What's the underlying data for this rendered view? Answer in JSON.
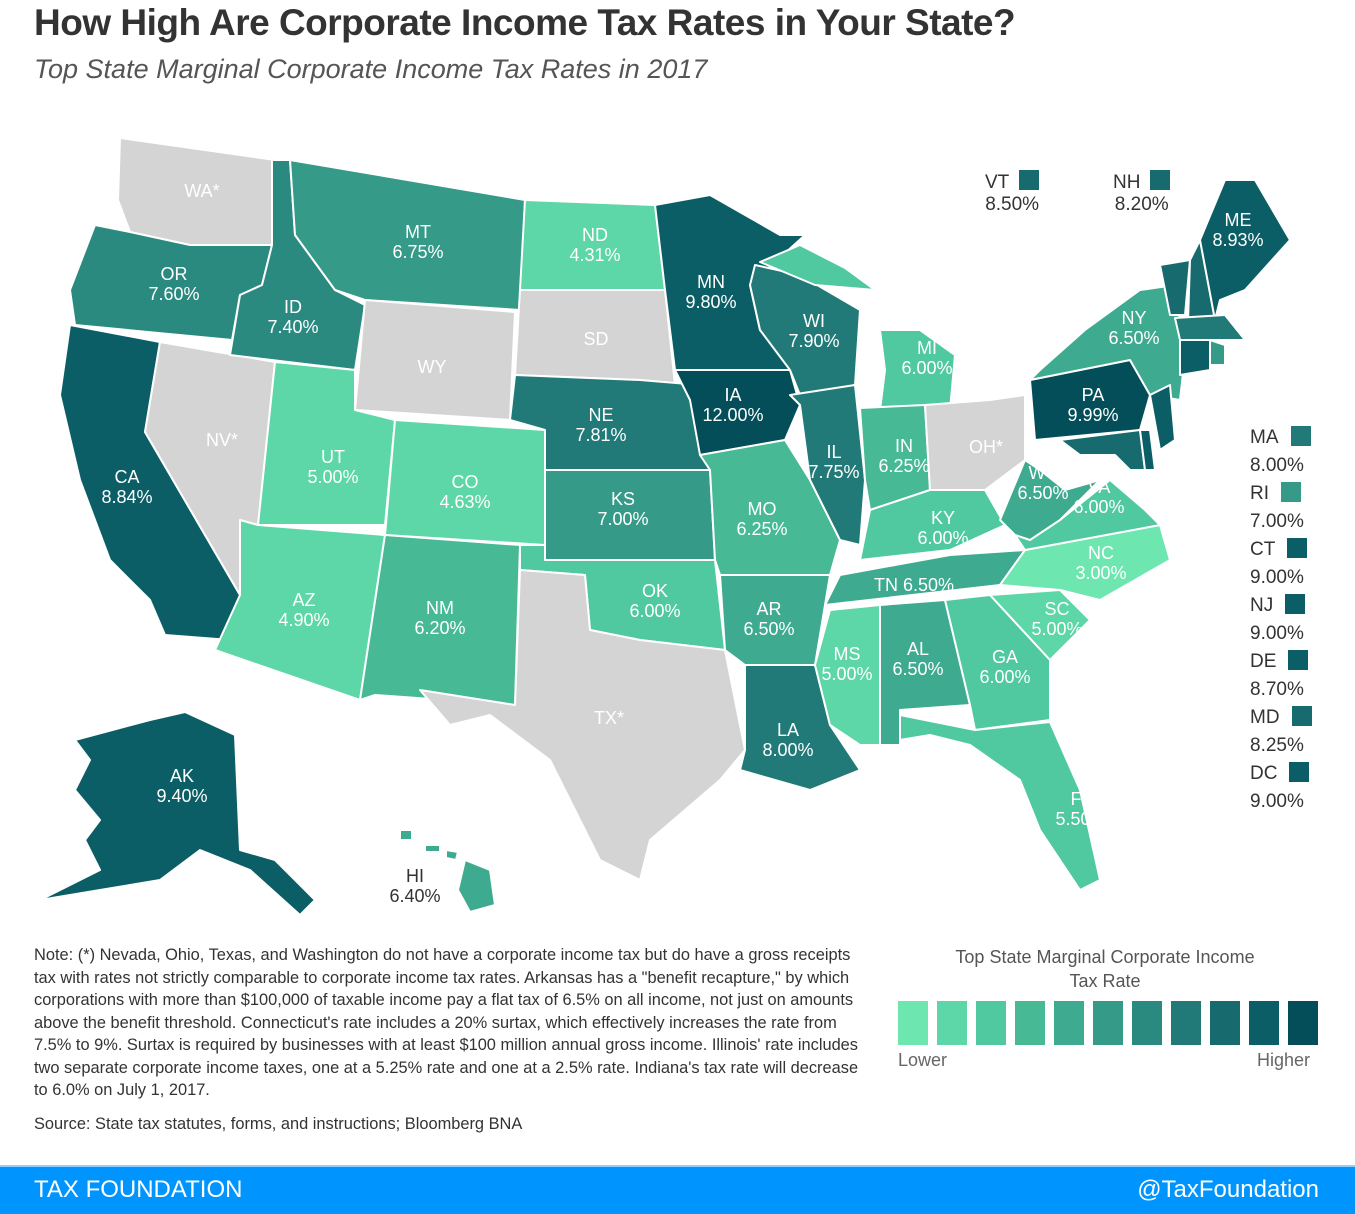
{
  "title": "How High Are Corporate Income Tax Rates in Your State?",
  "subtitle": "Top State Marginal Corporate Income Tax Rates in 2017",
  "palette": [
    "#6ee6b0",
    "#5dd6a8",
    "#50c8a0",
    "#47b995",
    "#3eaa90",
    "#369a88",
    "#2b8a80",
    "#217a78",
    "#176b6e",
    "#0c5e66",
    "#034e58"
  ],
  "thresholds": [
    4,
    5.2,
    6.1,
    6.3,
    6.6,
    7.1,
    7.7,
    8.1,
    8.6,
    9.95
  ],
  "no_tax_color": "#d4d4d4",
  "states": {
    "WA": {
      "label": "WA*",
      "rate": null,
      "rate_text": ""
    },
    "OR": {
      "label": "OR",
      "rate": 7.6,
      "rate_text": "7.60%"
    },
    "CA": {
      "label": "CA",
      "rate": 8.84,
      "rate_text": "8.84%"
    },
    "NV": {
      "label": "NV*",
      "rate": null,
      "rate_text": ""
    },
    "ID": {
      "label": "ID",
      "rate": 7.4,
      "rate_text": "7.40%"
    },
    "MT": {
      "label": "MT",
      "rate": 6.75,
      "rate_text": "6.75%"
    },
    "WY": {
      "label": "WY",
      "rate": null,
      "rate_text": ""
    },
    "UT": {
      "label": "UT",
      "rate": 5.0,
      "rate_text": "5.00%"
    },
    "CO": {
      "label": "CO",
      "rate": 4.63,
      "rate_text": "4.63%"
    },
    "AZ": {
      "label": "AZ",
      "rate": 4.9,
      "rate_text": "4.90%"
    },
    "NM": {
      "label": "NM",
      "rate": 6.2,
      "rate_text": "6.20%"
    },
    "ND": {
      "label": "ND",
      "rate": 4.31,
      "rate_text": "4.31%"
    },
    "SD": {
      "label": "SD",
      "rate": null,
      "rate_text": ""
    },
    "NE": {
      "label": "NE",
      "rate": 7.81,
      "rate_text": "7.81%"
    },
    "KS": {
      "label": "KS",
      "rate": 7.0,
      "rate_text": "7.00%"
    },
    "OK": {
      "label": "OK",
      "rate": 6.0,
      "rate_text": "6.00%"
    },
    "TX": {
      "label": "TX*",
      "rate": null,
      "rate_text": ""
    },
    "MN": {
      "label": "MN",
      "rate": 9.8,
      "rate_text": "9.80%"
    },
    "IA": {
      "label": "IA",
      "rate": 12.0,
      "rate_text": "12.00%"
    },
    "MO": {
      "label": "MO",
      "rate": 6.25,
      "rate_text": "6.25%"
    },
    "AR": {
      "label": "AR",
      "rate": 6.5,
      "rate_text": "6.50%"
    },
    "LA": {
      "label": "LA",
      "rate": 8.0,
      "rate_text": "8.00%"
    },
    "WI": {
      "label": "WI",
      "rate": 7.9,
      "rate_text": "7.90%"
    },
    "IL": {
      "label": "IL",
      "rate": 7.75,
      "rate_text": "7.75%"
    },
    "MI": {
      "label": "MI",
      "rate": 6.0,
      "rate_text": "6.00%"
    },
    "IN": {
      "label": "IN",
      "rate": 6.25,
      "rate_text": "6.25%"
    },
    "OH": {
      "label": "OH*",
      "rate": null,
      "rate_text": ""
    },
    "KY": {
      "label": "KY",
      "rate": 6.0,
      "rate_text": "6.00%"
    },
    "TN": {
      "label": "TN",
      "rate": 6.5,
      "rate_text": "6.50%"
    },
    "MS": {
      "label": "MS",
      "rate": 5.0,
      "rate_text": "5.00%"
    },
    "AL": {
      "label": "AL",
      "rate": 6.5,
      "rate_text": "6.50%"
    },
    "GA": {
      "label": "GA",
      "rate": 6.0,
      "rate_text": "6.00%"
    },
    "FL": {
      "label": "FL",
      "rate": 5.5,
      "rate_text": "5.50%"
    },
    "SC": {
      "label": "SC",
      "rate": 5.0,
      "rate_text": "5.00%"
    },
    "NC": {
      "label": "NC",
      "rate": 3.0,
      "rate_text": "3.00%"
    },
    "VA": {
      "label": "VA",
      "rate": 6.0,
      "rate_text": "6.00%"
    },
    "WV": {
      "label": "WV",
      "rate": 6.5,
      "rate_text": "6.50%"
    },
    "PA": {
      "label": "PA",
      "rate": 9.99,
      "rate_text": "9.99%"
    },
    "NY": {
      "label": "NY",
      "rate": 6.5,
      "rate_text": "6.50%"
    },
    "NJ": {
      "label": "NJ",
      "rate": 9.0,
      "rate_text": "9.00%"
    },
    "DE": {
      "label": "DE",
      "rate": 8.7,
      "rate_text": "8.70%"
    },
    "MD": {
      "label": "MD",
      "rate": 8.25,
      "rate_text": "8.25%"
    },
    "DC": {
      "label": "DC",
      "rate": 9.0,
      "rate_text": "9.00%"
    },
    "VT": {
      "label": "VT",
      "rate": 8.5,
      "rate_text": "8.50%"
    },
    "NH": {
      "label": "NH",
      "rate": 8.2,
      "rate_text": "8.20%"
    },
    "ME": {
      "label": "ME",
      "rate": 8.93,
      "rate_text": "8.93%"
    },
    "MA": {
      "label": "MA",
      "rate": 8.0,
      "rate_text": "8.00%"
    },
    "CT": {
      "label": "CT",
      "rate": 9.0,
      "rate_text": "9.00%"
    },
    "RI": {
      "label": "RI",
      "rate": 7.0,
      "rate_text": "7.00%"
    },
    "AK": {
      "label": "AK",
      "rate": 9.4,
      "rate_text": "9.40%"
    },
    "HI": {
      "label": "HI",
      "rate": 6.4,
      "rate_text": "6.40%"
    }
  },
  "note": "Note: (*) Nevada, Ohio, Texas, and Washington do not have a corporate income tax but do have a gross receipts tax with rates not strictly comparable to corporate income tax rates. Arkansas has a \"benefit recapture,\" by which corporations with more than $100,000 of taxable income pay a flat tax of 6.5% on all income, not just on amounts above the benefit threshold. Connecticut's rate includes a 20% surtax, which effectively increases the rate from 7.5% to 9%. Surtax is required by businesses with at least $100 million annual gross income. Illinois' rate includes two separate corporate income taxes, one at a 5.25% rate and one at a 2.5% rate. Indiana's tax rate will decrease to 6.0% on July 1, 2017.",
  "source": "Source: State tax statutes, forms, and instructions; Bloomberg BNA",
  "legend": {
    "title": "Top State Marginal Corporate Income Tax Rate",
    "low": "Lower",
    "high": "Higher"
  },
  "footer": {
    "brand": "TAX FOUNDATION",
    "handle": "@TaxFoundation"
  }
}
